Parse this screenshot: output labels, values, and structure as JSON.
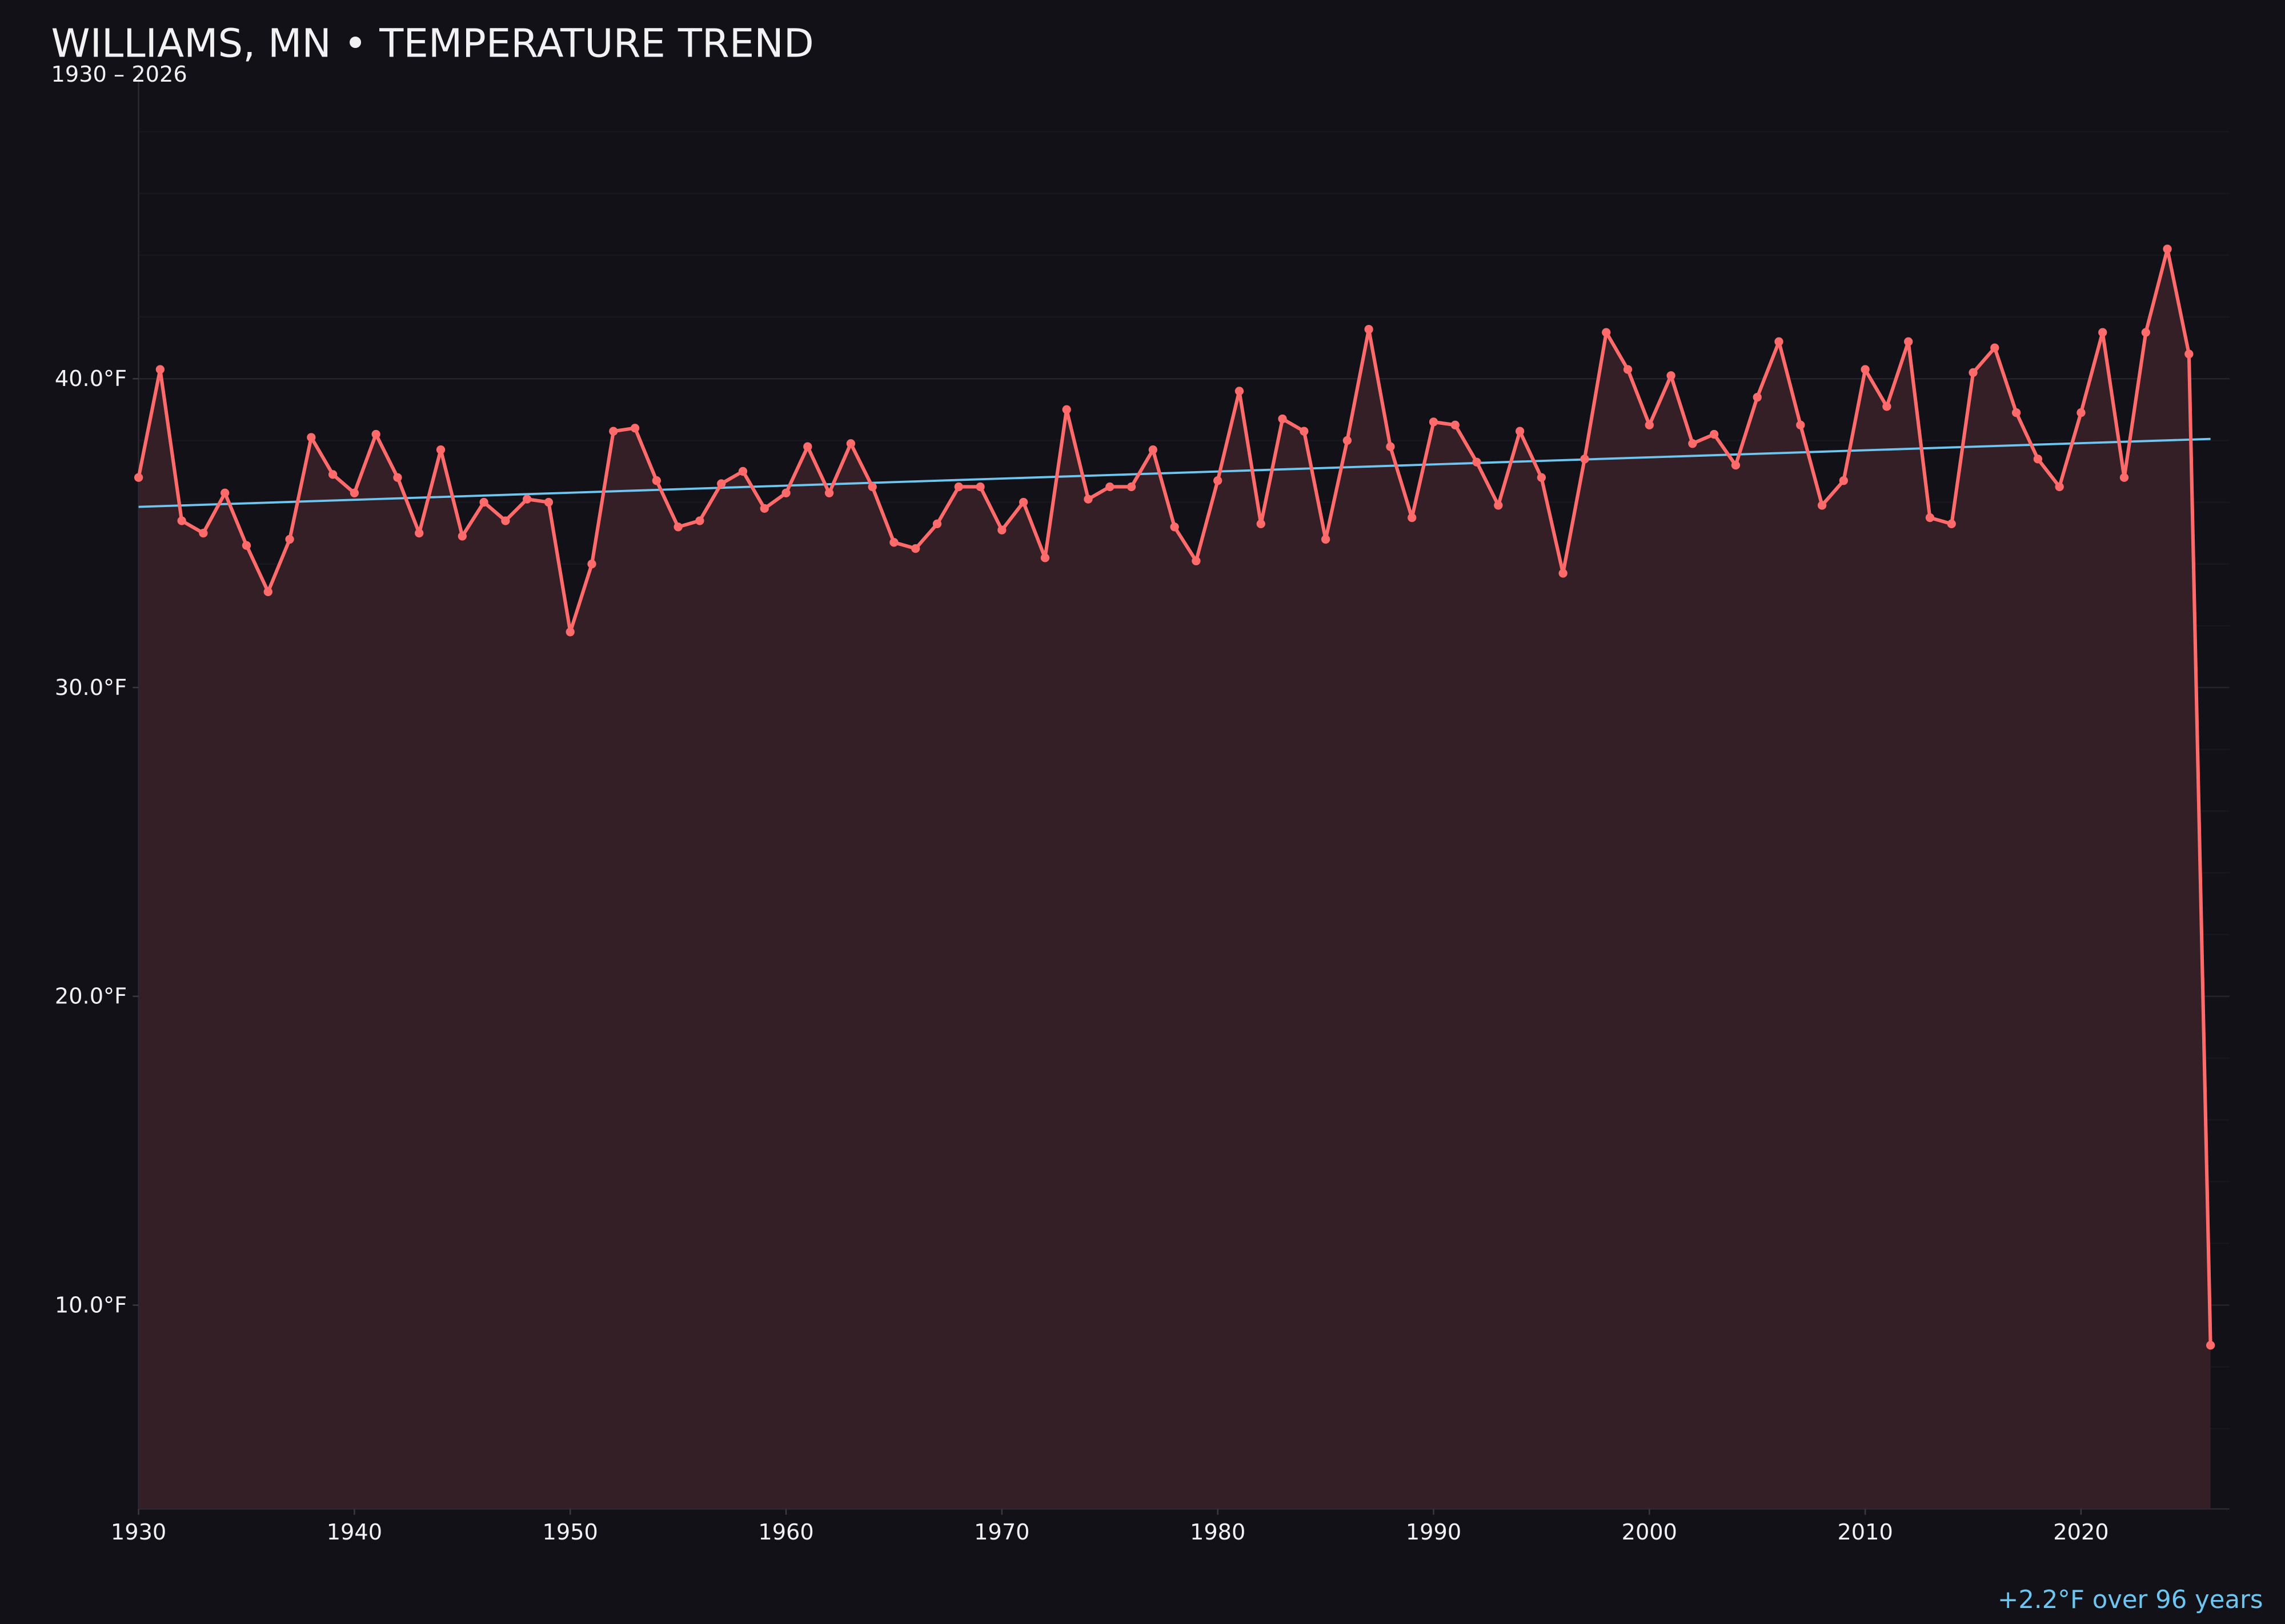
{
  "chart_data": {
    "type": "line",
    "title": "WILLIAMS, MN • TEMPERATURE TREND",
    "subtitle": "1930 – 2026",
    "annotation": "+2.2°F over 96 years",
    "xlim": [
      1930,
      2026
    ],
    "ylim": [
      3.4,
      50
    ],
    "grid": true,
    "x_ticks": [
      "1930",
      "1940",
      "1950",
      "1960",
      "1970",
      "1980",
      "1990",
      "2000",
      "2010",
      "2020"
    ],
    "y_ticks": [
      "10.0°F",
      "20.0°F",
      "30.0°F",
      "40.0°F"
    ],
    "colors": {
      "background": "#121118",
      "series": "#ff6b6b",
      "fill": "#341f26",
      "trend": "#6ec6f0",
      "text": "#f2f2f5",
      "grid": "#222028"
    },
    "x": [
      1930,
      1931,
      1932,
      1933,
      1934,
      1935,
      1936,
      1937,
      1938,
      1939,
      1940,
      1941,
      1942,
      1943,
      1944,
      1945,
      1946,
      1947,
      1948,
      1949,
      1950,
      1951,
      1952,
      1953,
      1954,
      1955,
      1956,
      1957,
      1958,
      1959,
      1960,
      1961,
      1962,
      1963,
      1964,
      1965,
      1966,
      1967,
      1968,
      1969,
      1970,
      1971,
      1972,
      1973,
      1974,
      1975,
      1976,
      1977,
      1978,
      1979,
      1980,
      1981,
      1982,
      1983,
      1984,
      1985,
      1986,
      1987,
      1988,
      1989,
      1990,
      1991,
      1992,
      1993,
      1994,
      1995,
      1996,
      1997,
      1998,
      1999,
      2000,
      2001,
      2002,
      2003,
      2004,
      2005,
      2006,
      2007,
      2008,
      2009,
      2010,
      2011,
      2012,
      2013,
      2014,
      2015,
      2016,
      2017,
      2018,
      2019,
      2020,
      2021,
      2022,
      2023,
      2024,
      2025,
      2026
    ],
    "values": [
      36.8,
      40.3,
      35.4,
      35.0,
      36.3,
      34.6,
      33.1,
      34.8,
      38.1,
      36.9,
      36.3,
      38.2,
      36.8,
      35.0,
      37.7,
      34.9,
      36.0,
      35.4,
      36.1,
      36.0,
      31.8,
      34.0,
      38.3,
      38.4,
      36.7,
      35.2,
      35.4,
      36.6,
      37.0,
      35.8,
      36.3,
      37.8,
      36.3,
      37.9,
      36.5,
      34.7,
      34.5,
      35.3,
      36.5,
      36.5,
      35.1,
      36.0,
      34.2,
      39.0,
      36.1,
      36.5,
      36.5,
      37.7,
      35.2,
      34.1,
      36.7,
      39.6,
      35.3,
      38.7,
      38.3,
      34.8,
      38.0,
      41.6,
      37.8,
      35.5,
      38.6,
      38.5,
      37.3,
      35.9,
      38.3,
      36.8,
      33.7,
      37.4,
      41.5,
      40.3,
      38.5,
      40.1,
      37.9,
      38.2,
      37.2,
      39.4,
      41.2,
      38.5,
      35.9,
      36.7,
      40.3,
      39.1,
      41.2,
      35.5,
      35.3,
      40.2,
      41.0,
      38.9,
      37.4,
      36.5,
      38.9,
      41.5,
      36.8,
      41.5,
      44.2,
      40.8,
      8.7
    ],
    "trend": {
      "x": [
        1930,
        2026
      ],
      "y": [
        35.85,
        38.05
      ]
    }
  }
}
